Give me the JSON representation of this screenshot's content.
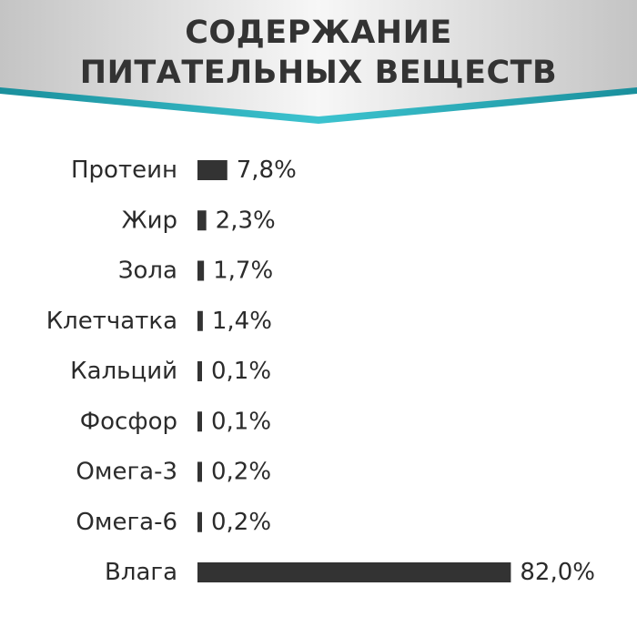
{
  "colors": {
    "bar": "#333333",
    "text": "#2b2b2b",
    "banner_silver_light": "#f4f4f4",
    "banner_silver_dark": "#bdbdbd",
    "banner_accent": "#1fa9b6"
  },
  "chart_data": {
    "type": "bar",
    "orientation": "horizontal",
    "title": "СОДЕРЖАНИЕ ПИТАТЕЛЬНЫХ ВЕЩЕСТВ",
    "title_lines": [
      "СОДЕРЖАНИЕ",
      "ПИТАТЕЛЬНЫХ ВЕЩЕСТВ"
    ],
    "categories": [
      "Протеин",
      "Жир",
      "Зола",
      "Клетчатка",
      "Кальций",
      "Фосфор",
      "Омега-3",
      "Омега-6",
      "Влага"
    ],
    "values": [
      7.8,
      2.3,
      1.7,
      1.4,
      0.1,
      0.1,
      0.2,
      0.2,
      82.0
    ],
    "value_labels": [
      "7,8%",
      "2,3%",
      "1,7%",
      "1,4%",
      "0,1%",
      "0,1%",
      "0,2%",
      "0,2%",
      "82,0%"
    ],
    "xlabel": "",
    "ylabel": "",
    "grid": false,
    "legend": "none"
  }
}
